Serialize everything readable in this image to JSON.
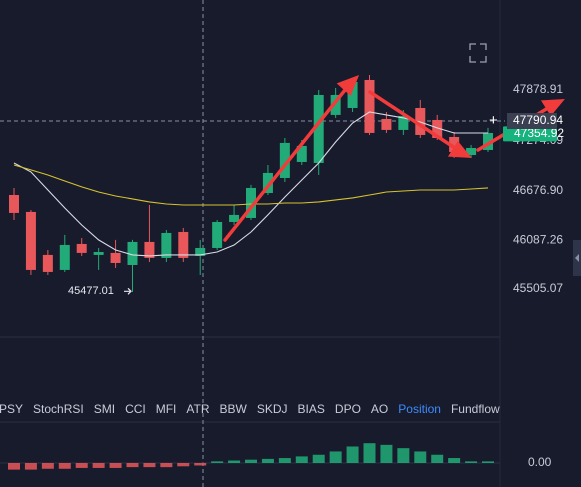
{
  "chart_data": {
    "type": "candlestick",
    "ylim": [
      44932,
      48952
    ],
    "yticks": [
      47878.91,
      47274.09,
      46676.9,
      46087.26,
      45505.07
    ],
    "grid": false,
    "up_color": "#22ab78",
    "down_color": "#e8575a",
    "open": [
      46626,
      46424,
      45911,
      45732,
      46042,
      45911,
      45935,
      45791,
      46066,
      45875,
      46185,
      45899,
      45994,
      46304,
      46352,
      46650,
      46829,
      47020,
      47008,
      47581,
      47664,
      47998,
      47533,
      47402,
      47664,
      47521,
      47318,
      47103,
      47163
    ],
    "high": [
      46710,
      46447,
      45970,
      46150,
      46113,
      45994,
      46090,
      46090,
      46507,
      46209,
      46233,
      46090,
      46328,
      46507,
      46746,
      46984,
      47306,
      47282,
      47879,
      47903,
      48022,
      48058,
      47616,
      47640,
      47760,
      47581,
      47378,
      47223,
      47426
    ],
    "low": [
      46328,
      45672,
      45672,
      45708,
      45899,
      45732,
      45756,
      45469,
      45827,
      45827,
      45827,
      45672,
      45970,
      46268,
      46328,
      46626,
      46781,
      46984,
      46865,
      47545,
      47616,
      47342,
      47366,
      47342,
      47306,
      47282,
      47068,
      47068,
      47139
    ],
    "close": [
      46412,
      45732,
      45708,
      46030,
      45935,
      45946,
      45815,
      46066,
      45875,
      46173,
      45875,
      45994,
      46304,
      46388,
      46710,
      46889,
      47247,
      47211,
      47819,
      47819,
      47974,
      47366,
      47402,
      47569,
      47342,
      47306,
      47139,
      47187,
      47366
    ],
    "series": [
      {
        "color": "#d8dbe6",
        "values": [
          47008,
          46901,
          46686,
          46471,
          46268,
          46090,
          45970,
          45911,
          45899,
          45911,
          45911,
          45911,
          45946,
          46030,
          46185,
          46388,
          46602,
          46805,
          47008,
          47258,
          47485,
          47616,
          47581,
          47545,
          47497,
          47426,
          47366,
          47366,
          47366
        ]
      },
      {
        "color": "#d9c22e",
        "values": [
          46984,
          46925,
          46865,
          46793,
          46722,
          46662,
          46614,
          46579,
          46543,
          46519,
          46507,
          46507,
          46507,
          46507,
          46519,
          46519,
          46531,
          46531,
          46543,
          46567,
          46591,
          46626,
          46662,
          46674,
          46686,
          46686,
          46686,
          46698,
          46710
        ]
      }
    ],
    "low_marker": 45477.01,
    "last_price": 47354.92,
    "crosshair_price": 47790.94,
    "tabs": [
      "PSY",
      "StochRSI",
      "SMI",
      "CCI",
      "MFI",
      "ATR",
      "BBW",
      "SKDJ",
      "BIAS",
      "DPO",
      "AO",
      "Position",
      "Fundflow"
    ],
    "active_tab": 11,
    "indicator": {
      "values": [
        -8,
        -8,
        -7,
        -7,
        -6,
        -6,
        -6,
        -5,
        -5,
        -5,
        -4,
        -3,
        2,
        3,
        4,
        5,
        6,
        8,
        10,
        14,
        20,
        24,
        22,
        18,
        14,
        10,
        6,
        2,
        2
      ],
      "ylim": [
        -40,
        40
      ],
      "yticks": [
        {
          "value": 0,
          "label": "0.00"
        }
      ]
    }
  }
}
